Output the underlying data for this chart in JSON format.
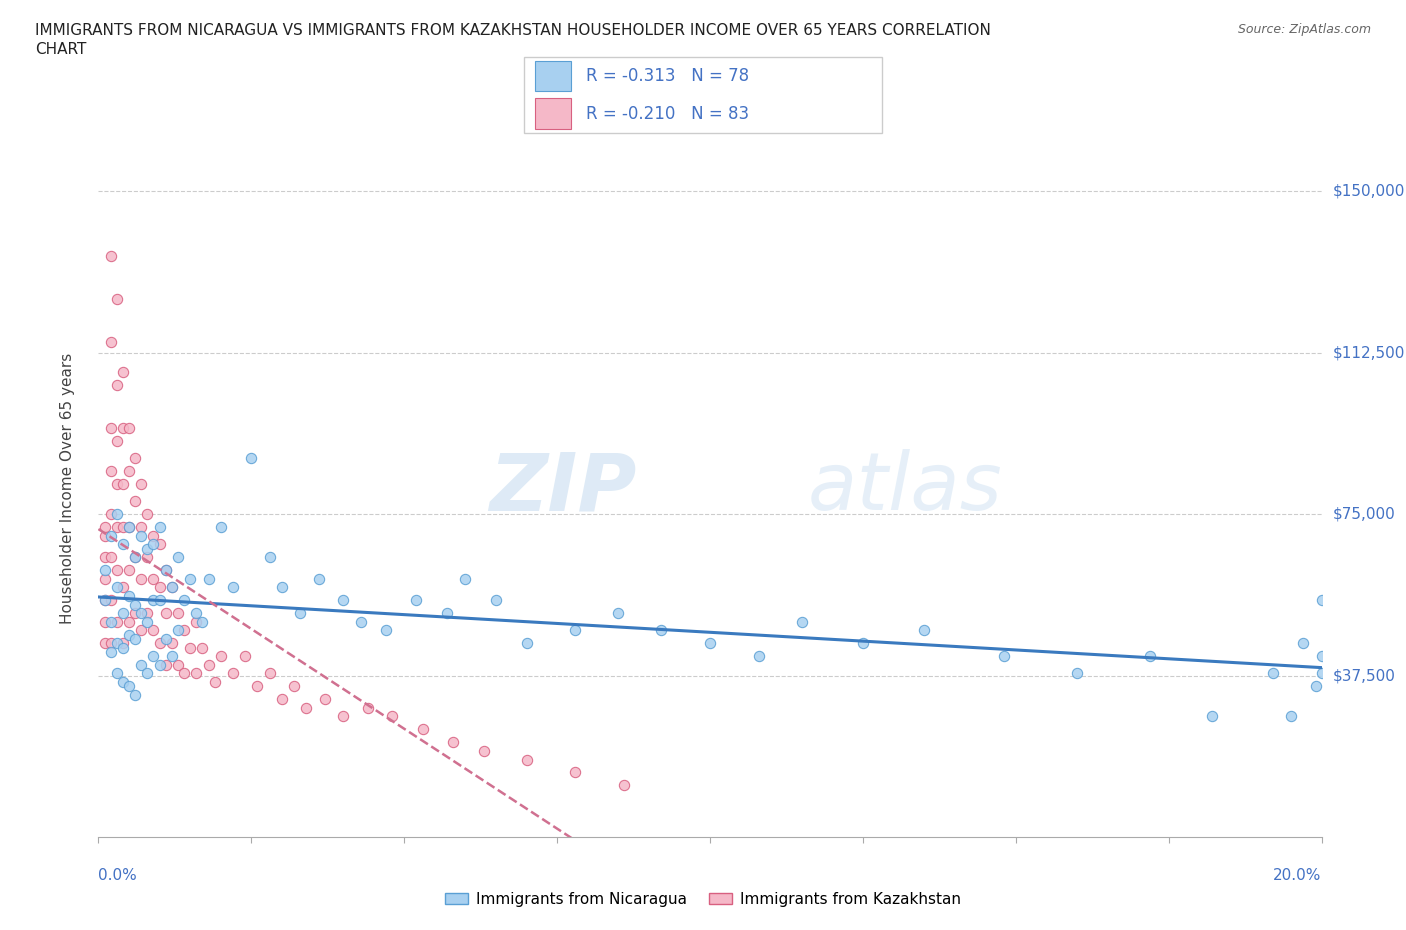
{
  "title_line1": "IMMIGRANTS FROM NICARAGUA VS IMMIGRANTS FROM KAZAKHSTAN HOUSEHOLDER INCOME OVER 65 YEARS CORRELATION",
  "title_line2": "CHART",
  "source": "Source: ZipAtlas.com",
  "ylabel": "Householder Income Over 65 years",
  "ytick_labels": [
    "$37,500",
    "$75,000",
    "$112,500",
    "$150,000"
  ],
  "ytick_values": [
    37500,
    75000,
    112500,
    150000
  ],
  "xlim": [
    0.0,
    0.2
  ],
  "ylim": [
    0,
    162000
  ],
  "r_nicaragua": -0.313,
  "n_nicaragua": 78,
  "r_kazakhstan": -0.21,
  "n_kazakhstan": 83,
  "color_nicaragua": "#a8d0f0",
  "color_nicaragua_dark": "#5a9fd4",
  "color_kazakhstan": "#f5b8c8",
  "color_kazakhstan_dark": "#d86080",
  "color_blue_text": "#4472c4",
  "color_line_nicaragua": "#3a7abf",
  "color_line_kazakhstan": "#d07090",
  "nicaragua_x": [
    0.001,
    0.001,
    0.002,
    0.002,
    0.002,
    0.003,
    0.003,
    0.003,
    0.003,
    0.004,
    0.004,
    0.004,
    0.004,
    0.005,
    0.005,
    0.005,
    0.005,
    0.006,
    0.006,
    0.006,
    0.006,
    0.007,
    0.007,
    0.007,
    0.008,
    0.008,
    0.008,
    0.009,
    0.009,
    0.009,
    0.01,
    0.01,
    0.01,
    0.011,
    0.011,
    0.012,
    0.012,
    0.013,
    0.013,
    0.014,
    0.015,
    0.016,
    0.017,
    0.018,
    0.02,
    0.022,
    0.025,
    0.028,
    0.03,
    0.033,
    0.036,
    0.04,
    0.043,
    0.047,
    0.052,
    0.057,
    0.06,
    0.065,
    0.07,
    0.078,
    0.085,
    0.092,
    0.1,
    0.108,
    0.115,
    0.125,
    0.135,
    0.148,
    0.16,
    0.172,
    0.182,
    0.192,
    0.195,
    0.197,
    0.199,
    0.2,
    0.2,
    0.2
  ],
  "nicaragua_y": [
    62000,
    55000,
    70000,
    50000,
    43000,
    75000,
    58000,
    45000,
    38000,
    68000,
    52000,
    44000,
    36000,
    72000,
    56000,
    47000,
    35000,
    65000,
    54000,
    46000,
    33000,
    70000,
    52000,
    40000,
    67000,
    50000,
    38000,
    68000,
    55000,
    42000,
    72000,
    55000,
    40000,
    62000,
    46000,
    58000,
    42000,
    65000,
    48000,
    55000,
    60000,
    52000,
    50000,
    60000,
    72000,
    58000,
    88000,
    65000,
    58000,
    52000,
    60000,
    55000,
    50000,
    48000,
    55000,
    52000,
    60000,
    55000,
    45000,
    48000,
    52000,
    48000,
    45000,
    42000,
    50000,
    45000,
    48000,
    42000,
    38000,
    42000,
    28000,
    38000,
    28000,
    45000,
    35000,
    55000,
    42000,
    38000
  ],
  "kazakhstan_x": [
    0.001,
    0.001,
    0.001,
    0.001,
    0.001,
    0.001,
    0.001,
    0.002,
    0.002,
    0.002,
    0.002,
    0.002,
    0.002,
    0.002,
    0.002,
    0.003,
    0.003,
    0.003,
    0.003,
    0.003,
    0.003,
    0.003,
    0.004,
    0.004,
    0.004,
    0.004,
    0.004,
    0.004,
    0.005,
    0.005,
    0.005,
    0.005,
    0.005,
    0.006,
    0.006,
    0.006,
    0.006,
    0.007,
    0.007,
    0.007,
    0.007,
    0.008,
    0.008,
    0.008,
    0.009,
    0.009,
    0.009,
    0.01,
    0.01,
    0.01,
    0.011,
    0.011,
    0.011,
    0.012,
    0.012,
    0.013,
    0.013,
    0.014,
    0.014,
    0.015,
    0.016,
    0.016,
    0.017,
    0.018,
    0.019,
    0.02,
    0.022,
    0.024,
    0.026,
    0.028,
    0.03,
    0.032,
    0.034,
    0.037,
    0.04,
    0.044,
    0.048,
    0.053,
    0.058,
    0.063,
    0.07,
    0.078,
    0.086
  ],
  "kazakhstan_y": [
    70000,
    65000,
    60000,
    55000,
    50000,
    45000,
    72000,
    135000,
    115000,
    95000,
    85000,
    75000,
    65000,
    55000,
    45000,
    125000,
    105000,
    92000,
    82000,
    72000,
    62000,
    50000,
    108000,
    95000,
    82000,
    72000,
    58000,
    45000,
    95000,
    85000,
    72000,
    62000,
    50000,
    88000,
    78000,
    65000,
    52000,
    82000,
    72000,
    60000,
    48000,
    75000,
    65000,
    52000,
    70000,
    60000,
    48000,
    68000,
    58000,
    45000,
    62000,
    52000,
    40000,
    58000,
    45000,
    52000,
    40000,
    48000,
    38000,
    44000,
    50000,
    38000,
    44000,
    40000,
    36000,
    42000,
    38000,
    42000,
    35000,
    38000,
    32000,
    35000,
    30000,
    32000,
    28000,
    30000,
    28000,
    25000,
    22000,
    20000,
    18000,
    15000,
    12000
  ]
}
